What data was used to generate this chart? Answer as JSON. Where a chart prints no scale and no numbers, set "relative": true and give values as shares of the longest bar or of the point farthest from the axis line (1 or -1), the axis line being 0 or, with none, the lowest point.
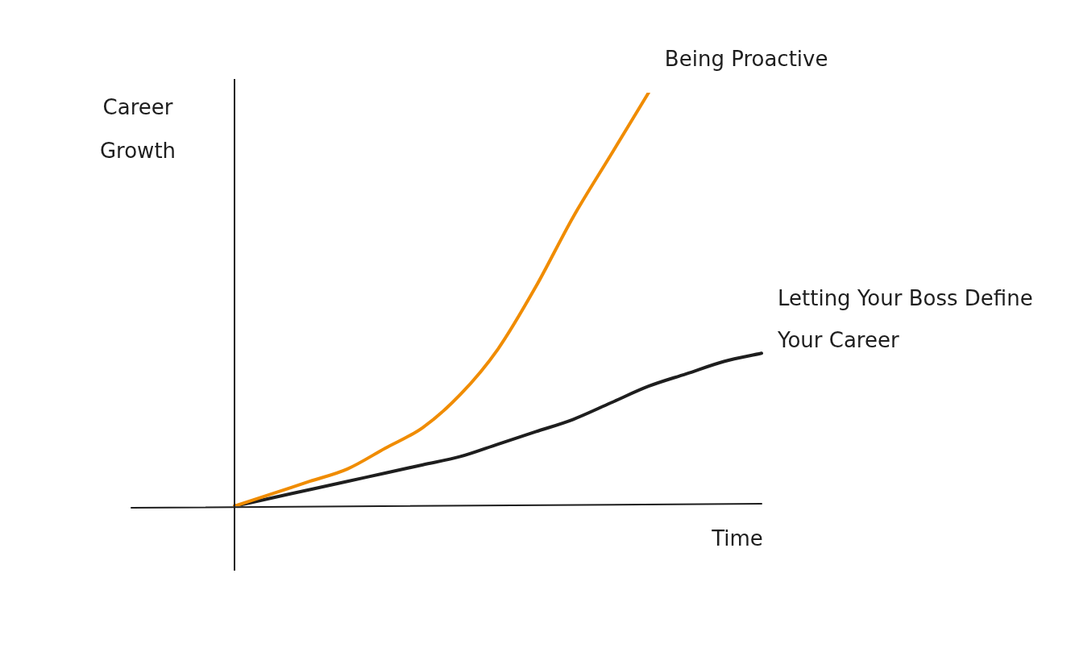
{
  "chart_data": {
    "type": "line",
    "relative": true,
    "xlabel": "Time",
    "ylabel": "Career Growth",
    "categories": [
      null,
      null,
      null,
      null,
      null,
      null,
      null,
      null,
      null,
      null,
      null,
      null,
      null,
      null,
      null
    ],
    "series": [
      {
        "name": "Being Proactive",
        "color": "#f08c00",
        "values": [
          0,
          0.03,
          0.06,
          0.09,
          0.14,
          0.19,
          0.27,
          0.38,
          0.53,
          0.7,
          0.85,
          1,
          null,
          null,
          null
        ]
      },
      {
        "name": "Letting Your Boss Define Your Career",
        "color": "#1e1e1e",
        "values": [
          0,
          0.02,
          0.04,
          0.06,
          0.08,
          0.1,
          0.12,
          0.15,
          0.18,
          0.21,
          0.25,
          0.29,
          0.32,
          0.35,
          0.37
        ]
      }
    ]
  }
}
